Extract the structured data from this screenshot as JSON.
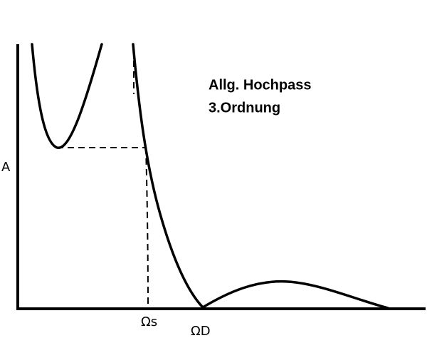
{
  "title": {
    "line1": "Allg. Hochpass",
    "line2": "3.Ordnung"
  },
  "axes": {
    "y_label": "A",
    "x_marks": [
      "Ωs",
      "ΩD"
    ]
  }
}
